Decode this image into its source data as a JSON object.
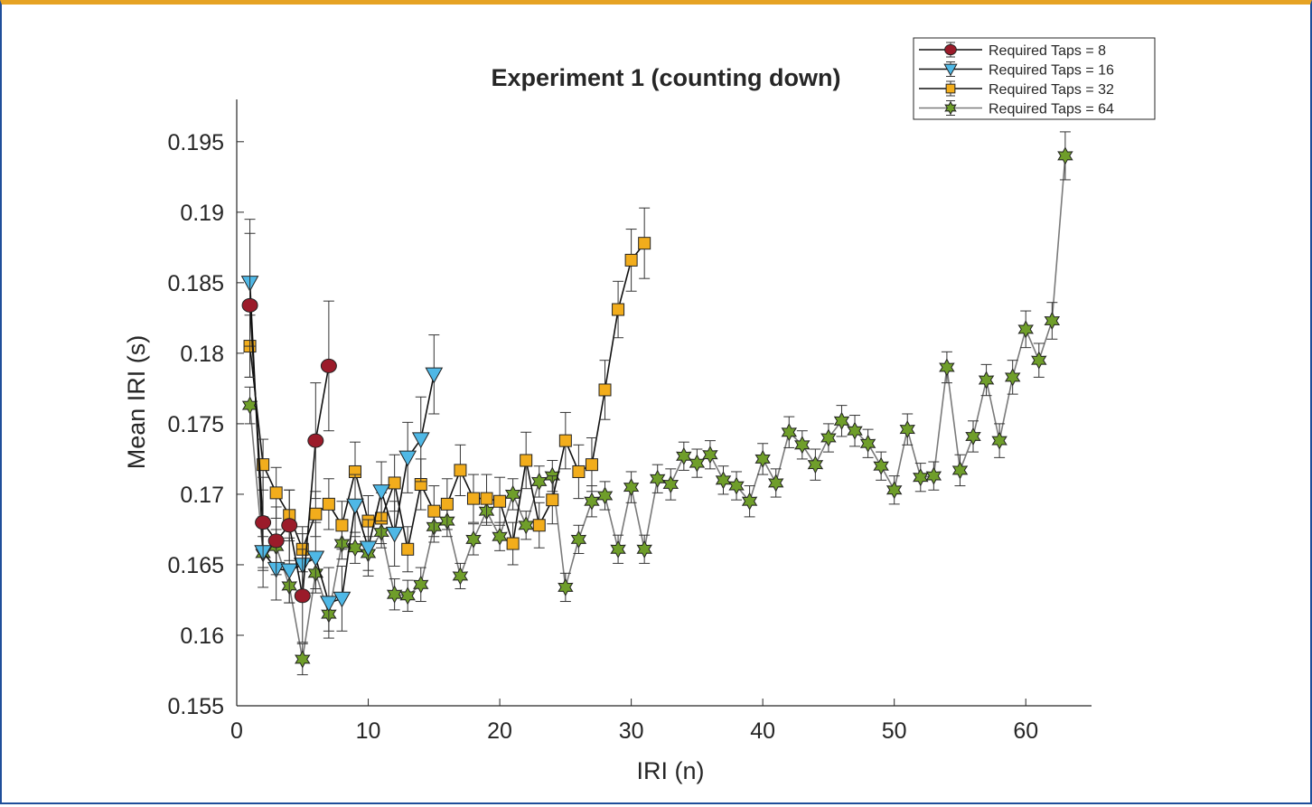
{
  "chart_data": {
    "type": "line",
    "title": "Experiment 1 (counting down)",
    "xlabel": "IRI (n)",
    "ylabel": "Mean IRI (s)",
    "xlim": [
      0,
      65
    ],
    "ylim": [
      0.155,
      0.198
    ],
    "xticks": [
      0,
      10,
      20,
      30,
      40,
      50,
      60
    ],
    "xtick_labels": [
      "0",
      "10",
      "20",
      "30",
      "40",
      "50",
      "60"
    ],
    "yticks": [
      0.155,
      0.16,
      0.165,
      0.17,
      0.175,
      0.18,
      0.185,
      0.19,
      0.195
    ],
    "ytick_labels": [
      "0.155",
      "0.16",
      "0.165",
      "0.17",
      "0.175",
      "0.18",
      "0.185",
      "0.19",
      "0.195"
    ],
    "grid": false,
    "legend_position": "top-right",
    "series": [
      {
        "name": "Required Taps = 8",
        "marker": "circle",
        "color": "#9b1b2a",
        "line_color": "#111111",
        "x": [
          1,
          2,
          3,
          4,
          5,
          6,
          7
        ],
        "y": [
          0.1834,
          0.168,
          0.1667,
          0.1678,
          0.1628,
          0.1738,
          0.1791
        ],
        "err": [
          0.0051,
          0.0032,
          0.0024,
          0.0025,
          0.0033,
          0.0041,
          0.0046
        ]
      },
      {
        "name": "Required Taps = 16",
        "marker": "triangle-down",
        "color": "#4fb8e6",
        "line_color": "#111111",
        "x": [
          1,
          2,
          3,
          4,
          5,
          6,
          7,
          8,
          9,
          10,
          11,
          12,
          13,
          14,
          15
        ],
        "y": [
          0.185,
          0.1659,
          0.1647,
          0.1646,
          0.165,
          0.1655,
          0.1623,
          0.1626,
          0.1692,
          0.1662,
          0.1702,
          0.1672,
          0.1726,
          0.1739,
          0.1785
        ],
        "err": [
          0.0045,
          0.0025,
          0.0022,
          0.0023,
          0.0022,
          0.0025,
          0.0025,
          0.0023,
          0.0022,
          0.002,
          0.0021,
          0.0023,
          0.0025,
          0.003,
          0.0028
        ]
      },
      {
        "name": "Required Taps = 32",
        "marker": "square",
        "color": "#f2ad1c",
        "line_color": "#111111",
        "x": [
          1,
          2,
          3,
          4,
          5,
          6,
          7,
          8,
          9,
          10,
          11,
          12,
          13,
          14,
          15,
          16,
          17,
          18,
          19,
          20,
          21,
          22,
          23,
          24,
          25,
          26,
          27,
          28,
          29,
          30,
          31
        ],
        "y": [
          0.1805,
          0.1721,
          0.1701,
          0.1685,
          0.1661,
          0.1686,
          0.1693,
          0.1678,
          0.1716,
          0.1681,
          0.1683,
          0.1708,
          0.1661,
          0.1707,
          0.1688,
          0.1693,
          0.1717,
          0.1697,
          0.1697,
          0.1695,
          0.1665,
          0.1724,
          0.1678,
          0.1696,
          0.1738,
          0.1716,
          0.1721,
          0.1774,
          0.1831,
          0.1866,
          0.1878
        ],
        "err": [
          0.0022,
          0.0018,
          0.0018,
          0.0018,
          0.0016,
          0.0016,
          0.0018,
          0.0017,
          0.0021,
          0.0018,
          0.0018,
          0.002,
          0.0016,
          0.0018,
          0.0018,
          0.0018,
          0.0018,
          0.0017,
          0.0017,
          0.0017,
          0.0015,
          0.002,
          0.0016,
          0.0017,
          0.002,
          0.0019,
          0.0019,
          0.0021,
          0.002,
          0.0022,
          0.0025
        ]
      },
      {
        "name": "Required Taps = 64",
        "marker": "hexagram",
        "color": "#6f9e2a",
        "line_color": "#7a7a7a",
        "x": [
          1,
          2,
          3,
          4,
          5,
          6,
          7,
          8,
          9,
          10,
          11,
          12,
          13,
          14,
          15,
          16,
          17,
          18,
          19,
          20,
          21,
          22,
          23,
          24,
          25,
          26,
          27,
          28,
          29,
          30,
          31,
          32,
          33,
          34,
          35,
          36,
          37,
          38,
          39,
          40,
          41,
          42,
          43,
          44,
          45,
          46,
          47,
          48,
          49,
          50,
          51,
          52,
          53,
          54,
          55,
          56,
          57,
          58,
          59,
          60,
          61,
          62,
          63
        ],
        "y": [
          0.1763,
          0.1658,
          0.1663,
          0.1635,
          0.1583,
          0.1644,
          0.1615,
          0.1665,
          0.1662,
          0.1658,
          0.1673,
          0.1629,
          0.1628,
          0.1636,
          0.1677,
          0.1681,
          0.1642,
          0.1668,
          0.1688,
          0.167,
          0.17,
          0.1678,
          0.1709,
          0.1713,
          0.1634,
          0.1668,
          0.1695,
          0.1699,
          0.1661,
          0.1705,
          0.1661,
          0.1711,
          0.1707,
          0.1727,
          0.1722,
          0.1728,
          0.171,
          0.1706,
          0.1695,
          0.1725,
          0.1708,
          0.1744,
          0.1735,
          0.1721,
          0.174,
          0.1752,
          0.1745,
          0.1736,
          0.172,
          0.1703,
          0.1746,
          0.1712,
          0.1713,
          0.179,
          0.1717,
          0.1741,
          0.1781,
          0.1738,
          0.1783,
          0.1817,
          0.1795,
          0.1823,
          0.194
        ],
        "err": [
          0.0013,
          0.0012,
          0.0012,
          0.0012,
          0.0011,
          0.0011,
          0.0012,
          0.0011,
          0.0011,
          0.0012,
          0.0011,
          0.0011,
          0.0011,
          0.0012,
          0.0011,
          0.0011,
          0.0009,
          0.0011,
          0.001,
          0.001,
          0.0011,
          0.001,
          0.0011,
          0.0011,
          0.001,
          0.001,
          0.0011,
          0.001,
          0.001,
          0.0011,
          0.001,
          0.001,
          0.0011,
          0.001,
          0.001,
          0.001,
          0.001,
          0.001,
          0.0011,
          0.0011,
          0.001,
          0.0011,
          0.001,
          0.0011,
          0.001,
          0.0011,
          0.0011,
          0.001,
          0.001,
          0.001,
          0.0011,
          0.001,
          0.001,
          0.0011,
          0.0011,
          0.0011,
          0.0011,
          0.0012,
          0.0012,
          0.0013,
          0.0012,
          0.0013,
          0.0017
        ]
      }
    ]
  }
}
